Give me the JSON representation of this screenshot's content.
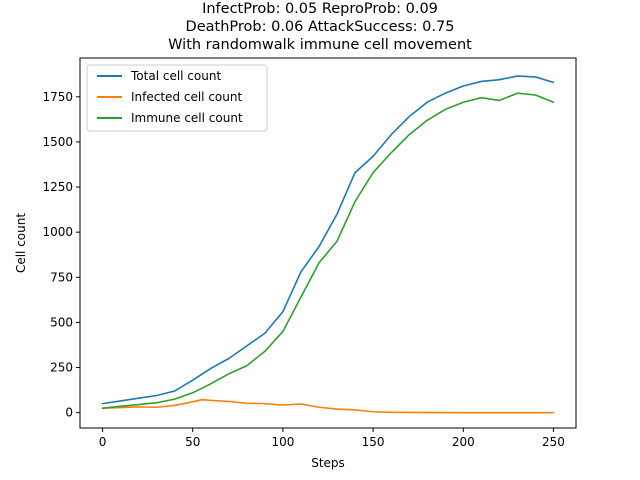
{
  "chart_data": {
    "type": "line",
    "title_lines": [
      "InfectProb: 0.05 ReproProb: 0.09",
      "DeathProb: 0.06 AttackSuccess: 0.75",
      "With randomwalk immune cell movement"
    ],
    "xlabel": "Steps",
    "ylabel": "Cell count",
    "xlim": [
      -12.5,
      262.5
    ],
    "ylim": [
      -85,
      1965
    ],
    "x_ticks": [
      0,
      50,
      100,
      150,
      200,
      250
    ],
    "y_ticks": [
      0,
      250,
      500,
      750,
      1000,
      1250,
      1500,
      1750
    ],
    "grid": false,
    "legend_position": "top-left",
    "series": [
      {
        "name": "Total cell count",
        "color": "#1f77b4",
        "points": [
          [
            0,
            50
          ],
          [
            10,
            65
          ],
          [
            20,
            80
          ],
          [
            30,
            95
          ],
          [
            40,
            120
          ],
          [
            50,
            180
          ],
          [
            60,
            245
          ],
          [
            70,
            300
          ],
          [
            80,
            370
          ],
          [
            90,
            440
          ],
          [
            100,
            560
          ],
          [
            110,
            780
          ],
          [
            120,
            920
          ],
          [
            130,
            1100
          ],
          [
            140,
            1330
          ],
          [
            150,
            1420
          ],
          [
            160,
            1540
          ],
          [
            170,
            1640
          ],
          [
            180,
            1720
          ],
          [
            190,
            1770
          ],
          [
            200,
            1810
          ],
          [
            210,
            1835
          ],
          [
            220,
            1845
          ],
          [
            230,
            1865
          ],
          [
            240,
            1860
          ],
          [
            250,
            1830
          ]
        ]
      },
      {
        "name": "Infected cell count",
        "color": "#ff7f0e",
        "points": [
          [
            0,
            25
          ],
          [
            10,
            28
          ],
          [
            20,
            32
          ],
          [
            30,
            30
          ],
          [
            40,
            40
          ],
          [
            50,
            60
          ],
          [
            55,
            72
          ],
          [
            60,
            68
          ],
          [
            70,
            62
          ],
          [
            80,
            52
          ],
          [
            90,
            50
          ],
          [
            100,
            42
          ],
          [
            110,
            48
          ],
          [
            120,
            30
          ],
          [
            130,
            20
          ],
          [
            140,
            15
          ],
          [
            150,
            5
          ],
          [
            160,
            2
          ],
          [
            170,
            1
          ],
          [
            200,
            0
          ],
          [
            250,
            0
          ]
        ]
      },
      {
        "name": "Immune cell count",
        "color": "#2ca02c",
        "points": [
          [
            0,
            25
          ],
          [
            10,
            35
          ],
          [
            20,
            45
          ],
          [
            30,
            55
          ],
          [
            40,
            75
          ],
          [
            50,
            110
          ],
          [
            60,
            160
          ],
          [
            70,
            215
          ],
          [
            80,
            260
          ],
          [
            90,
            340
          ],
          [
            100,
            450
          ],
          [
            110,
            640
          ],
          [
            120,
            830
          ],
          [
            130,
            950
          ],
          [
            140,
            1170
          ],
          [
            150,
            1330
          ],
          [
            160,
            1440
          ],
          [
            170,
            1540
          ],
          [
            180,
            1620
          ],
          [
            190,
            1680
          ],
          [
            200,
            1720
          ],
          [
            210,
            1745
          ],
          [
            220,
            1730
          ],
          [
            230,
            1770
          ],
          [
            240,
            1760
          ],
          [
            250,
            1720
          ]
        ]
      }
    ]
  }
}
